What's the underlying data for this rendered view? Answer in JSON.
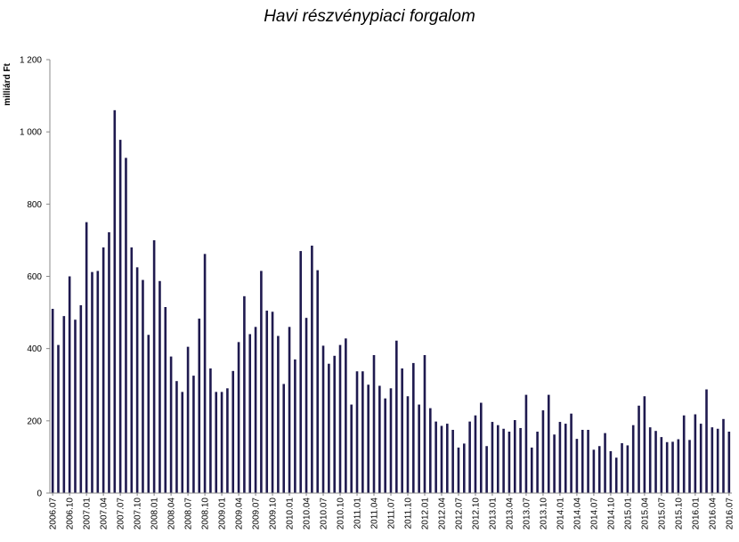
{
  "chart_data": {
    "type": "bar",
    "title": "Havi részvénypiaci forgalom",
    "ylabel": "milliárd Ft",
    "xlabel": "",
    "ylim": [
      0,
      1200
    ],
    "yticks": [
      0,
      200,
      400,
      600,
      800,
      1000,
      1200
    ],
    "ytick_labels": [
      "0",
      "200",
      "400",
      "600",
      "800",
      "1 000",
      "1 200"
    ],
    "grid": false,
    "bar_color": "#1f1a4f",
    "categories": [
      "2006.07",
      "2006.08",
      "2006.09",
      "2006.10",
      "2006.11",
      "2006.12",
      "2007.01",
      "2007.02",
      "2007.03",
      "2007.04",
      "2007.05",
      "2007.06",
      "2007.07",
      "2007.08",
      "2007.09",
      "2007.10",
      "2007.11",
      "2007.12",
      "2008.01",
      "2008.02",
      "2008.03",
      "2008.04",
      "2008.05",
      "2008.06",
      "2008.07",
      "2008.08",
      "2008.09",
      "2008.10",
      "2008.11",
      "2008.12",
      "2009.01",
      "2009.02",
      "2009.03",
      "2009.04",
      "2009.05",
      "2009.06",
      "2009.07",
      "2009.08",
      "2009.09",
      "2009.10",
      "2009.11",
      "2009.12",
      "2010.01",
      "2010.02",
      "2010.03",
      "2010.04",
      "2010.05",
      "2010.06",
      "2010.07",
      "2010.08",
      "2010.09",
      "2010.10",
      "2010.11",
      "2010.12",
      "2011.01",
      "2011.02",
      "2011.03",
      "2011.04",
      "2011.05",
      "2011.06",
      "2011.07",
      "2011.08",
      "2011.09",
      "2011.10",
      "2011.11",
      "2011.12",
      "2012.01",
      "2012.02",
      "2012.03",
      "2012.04",
      "2012.05",
      "2012.06",
      "2012.07",
      "2012.08",
      "2012.09",
      "2012.10",
      "2012.11",
      "2012.12",
      "2013.01",
      "2013.02",
      "2013.03",
      "2013.04",
      "2013.05",
      "2013.06",
      "2013.07",
      "2013.08",
      "2013.09",
      "2013.10",
      "2013.11",
      "2013.12",
      "2014.01",
      "2014.02",
      "2014.03",
      "2014.04",
      "2014.05",
      "2014.06",
      "2014.07",
      "2014.08",
      "2014.09",
      "2014.10",
      "2014.11",
      "2014.12",
      "2015.01",
      "2015.02",
      "2015.03",
      "2015.04",
      "2015.05",
      "2015.06",
      "2015.07",
      "2015.08",
      "2015.09",
      "2015.10",
      "2015.11",
      "2015.12",
      "2016.01",
      "2016.02",
      "2016.03",
      "2016.04",
      "2016.05",
      "2016.06",
      "2016.07"
    ],
    "xtick_labels_shown": [
      "2006.07",
      "2006.10",
      "2007.01",
      "2007.04",
      "2007.07",
      "2007.10",
      "2008.01",
      "2008.04",
      "2008.07",
      "2008.10",
      "2009.01",
      "2009.04",
      "2009.07",
      "2009.10",
      "2010.01",
      "2010.04",
      "2010.07",
      "2010.10",
      "2011.01",
      "2011.04",
      "2011.07",
      "2011.10",
      "2012.01",
      "2012.04",
      "2012.07",
      "2012.10",
      "2013.01",
      "2013.04",
      "2013.07",
      "2013.10",
      "2014.01",
      "2014.04",
      "2014.07",
      "2014.10",
      "2015.01",
      "2015.04",
      "2015.07",
      "2015.10",
      "2016.01",
      "2016.04",
      "2016.07"
    ],
    "values": [
      510,
      410,
      490,
      600,
      480,
      520,
      750,
      612,
      615,
      680,
      722,
      1060,
      978,
      928,
      680,
      625,
      590,
      438,
      700,
      587,
      515,
      378,
      310,
      280,
      405,
      325,
      483,
      662,
      345,
      280,
      280,
      290,
      338,
      418,
      545,
      440,
      460,
      615,
      505,
      502,
      435,
      302,
      460,
      370,
      670,
      485,
      685,
      617,
      408,
      358,
      380,
      410,
      428,
      245,
      337,
      337,
      300,
      382,
      297,
      262,
      290,
      422,
      345,
      268,
      360,
      245,
      382,
      235,
      198,
      186,
      192,
      175,
      126,
      137,
      198,
      215,
      250,
      130,
      197,
      188,
      178,
      170,
      202,
      180,
      272,
      126,
      170,
      229,
      272,
      162,
      197,
      192,
      220,
      150,
      175,
      175,
      120,
      130,
      166,
      116,
      98,
      138,
      132,
      188,
      242,
      268,
      182,
      172,
      155,
      141,
      142,
      149,
      215,
      147,
      218,
      192,
      287,
      182,
      178,
      205,
      170
    ]
  }
}
